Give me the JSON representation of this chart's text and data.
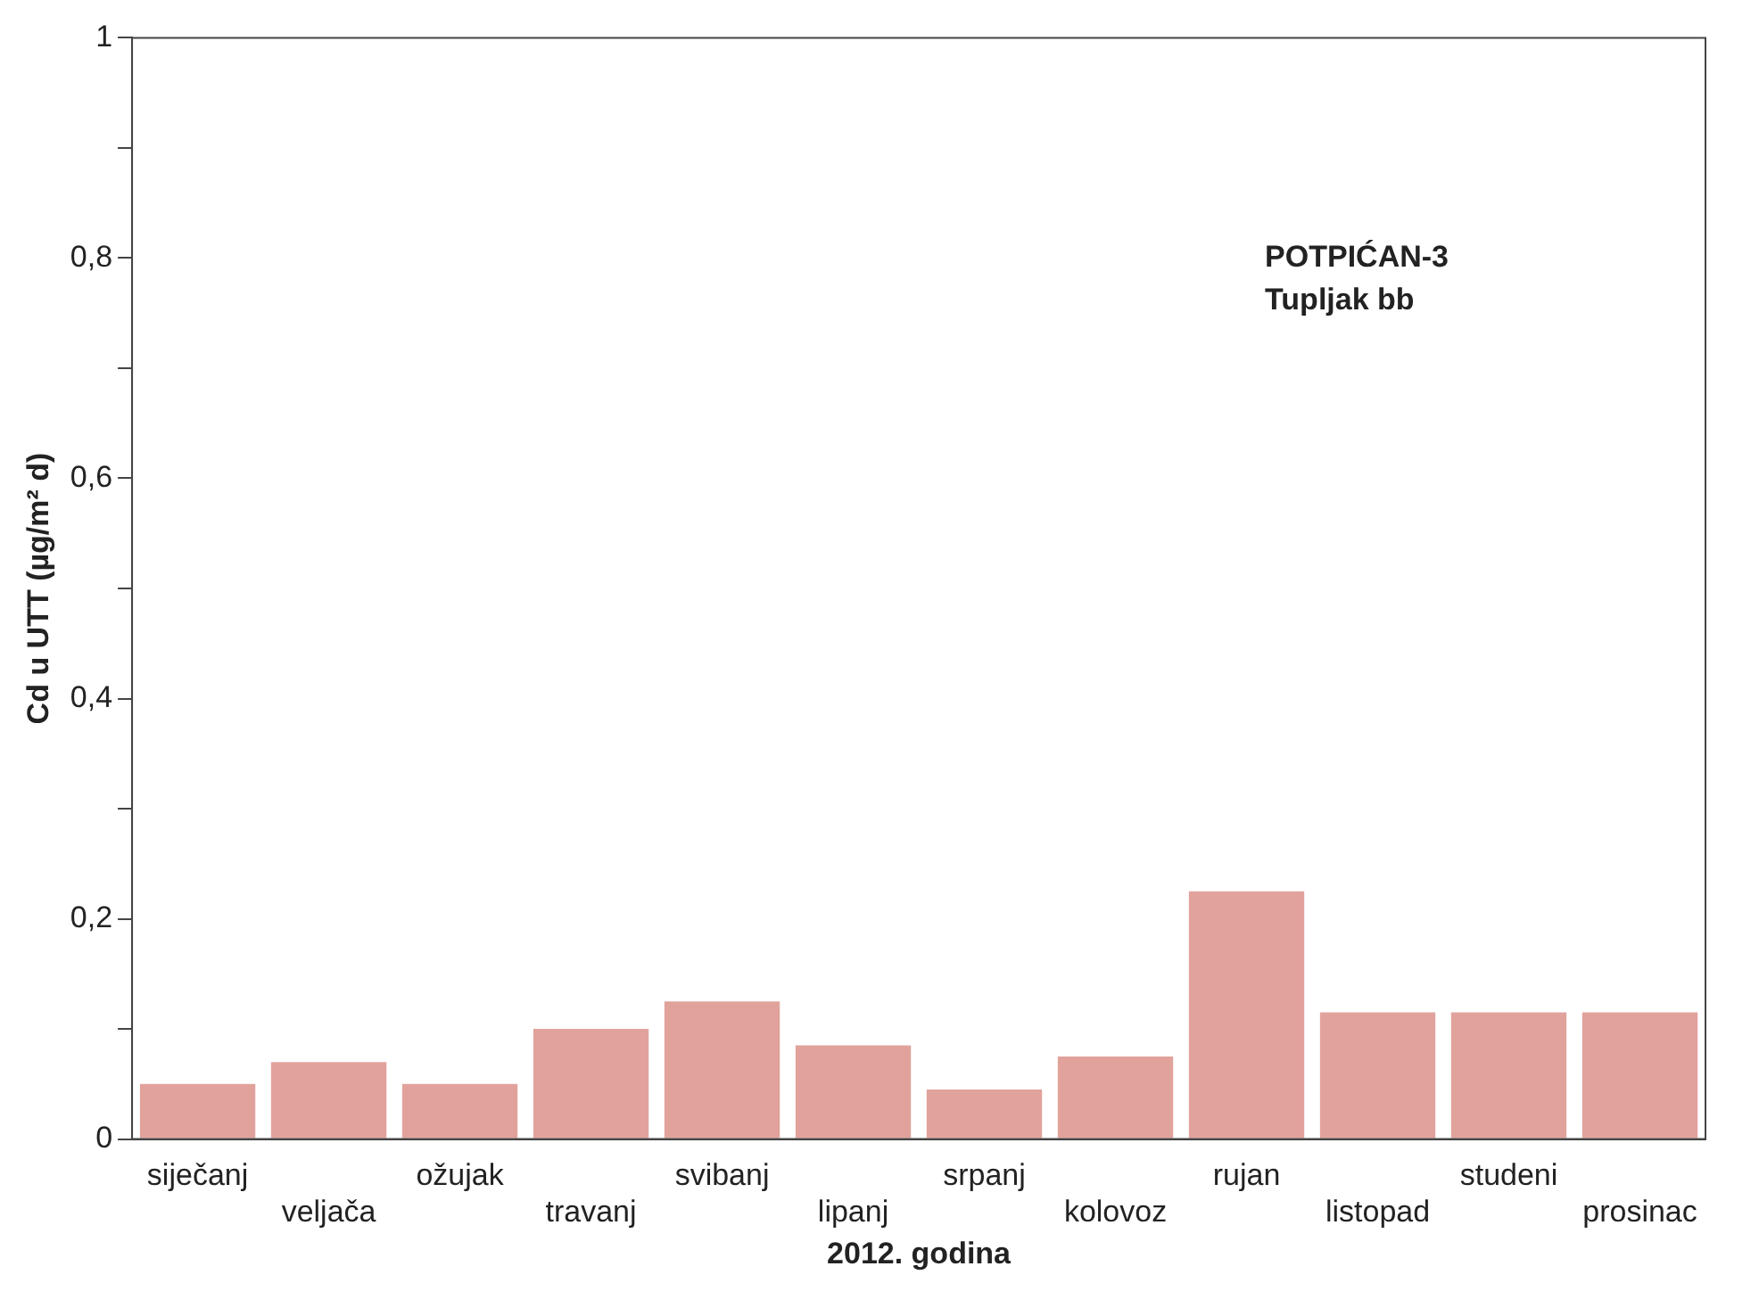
{
  "chart_data": {
    "type": "bar",
    "xlabel": "2012. godina",
    "ylabel": "Cd u UTT (µg/m² d)",
    "categories": [
      "siječanj",
      "veljača",
      "ožujak",
      "travanj",
      "svibanj",
      "lipanj",
      "srpanj",
      "kolovoz",
      "rujan",
      "listopad",
      "studeni",
      "prosinac"
    ],
    "values": [
      0.05,
      0.07,
      0.05,
      0.1,
      0.125,
      0.085,
      0.045,
      0.075,
      0.225,
      0.115,
      0.115,
      0.115
    ],
    "color": "#e2a29c",
    "ylim": [
      0,
      1
    ],
    "yticks": [
      0,
      {
        "value": 0.1,
        "label": null
      },
      {
        "value": 0.2,
        "label": "0,2"
      },
      {
        "value": 0.3,
        "label": null
      },
      {
        "value": 0.4,
        "label": "0,4"
      },
      {
        "value": 0.5,
        "label": null
      },
      {
        "value": 0.6,
        "label": "0,6"
      },
      {
        "value": 0.7,
        "label": null
      },
      {
        "value": 0.8,
        "label": "0,8"
      },
      {
        "value": 0.9,
        "label": null
      },
      1
    ],
    "grid": false,
    "annotations": [
      "POTPIĆAN-3",
      "Tupljak bb"
    ]
  }
}
